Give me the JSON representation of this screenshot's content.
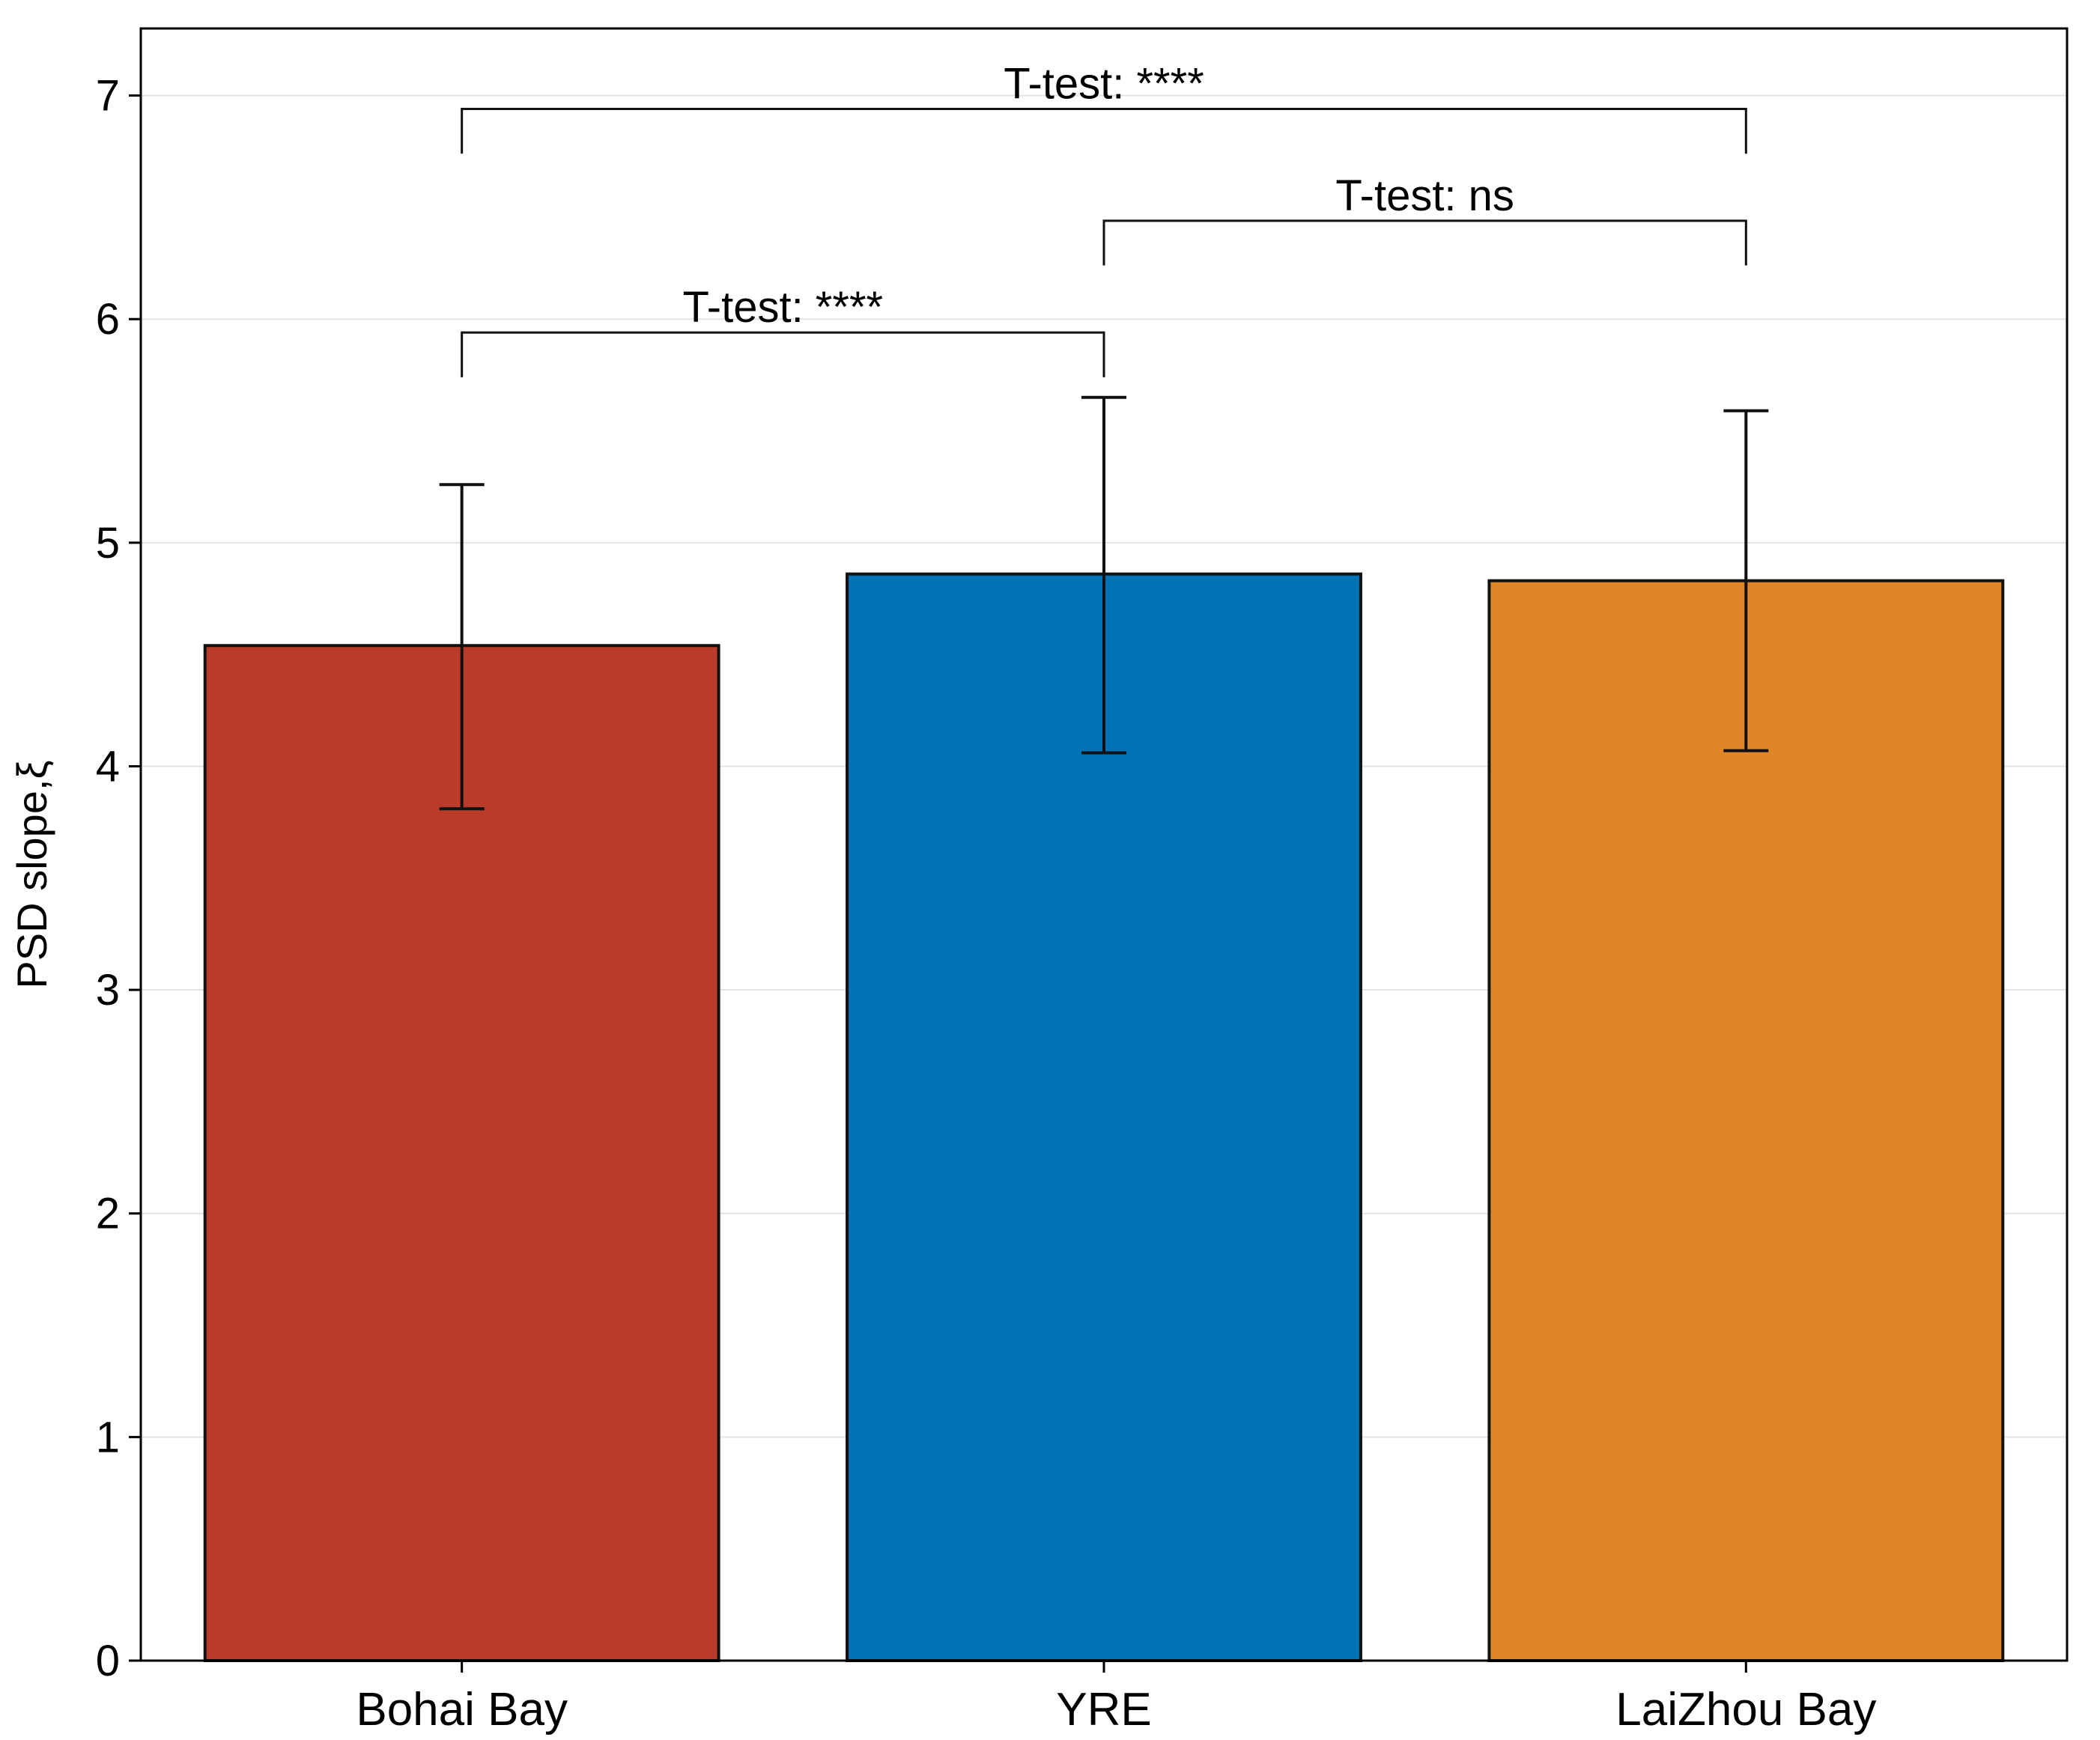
{
  "chart_data": {
    "type": "bar",
    "title": "",
    "xlabel": "",
    "ylabel": "PSD slope,ξ",
    "ylim": [
      0,
      7.3
    ],
    "yticks": [
      0,
      1,
      2,
      3,
      4,
      5,
      6,
      7
    ],
    "grid": true,
    "categories": [
      "Bohai Bay",
      "YRE",
      "LaiZhou Bay"
    ],
    "values": [
      4.54,
      4.86,
      4.83
    ],
    "error_low": [
      3.81,
      4.06,
      4.07
    ],
    "error_high": [
      5.26,
      5.65,
      5.59
    ],
    "colors": [
      "#BA3B2A",
      "#0072B5",
      "#E08628"
    ],
    "comparisons": [
      {
        "from": 0,
        "to": 2,
        "label": "T-test: ****",
        "y": 6.94,
        "drop": 0.2
      },
      {
        "from": 1,
        "to": 2,
        "label": "T-test: ns",
        "y": 6.44,
        "drop": 0.2
      },
      {
        "from": 0,
        "to": 1,
        "label": "T-test: ****",
        "y": 5.94,
        "drop": 0.2
      }
    ]
  }
}
